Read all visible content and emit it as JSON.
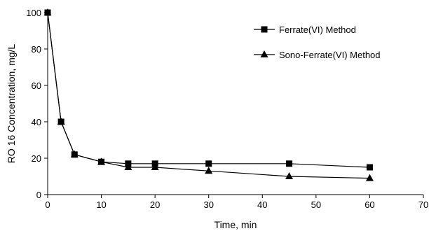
{
  "chart_data": {
    "type": "line",
    "xlabel": "Time, min",
    "ylabel": "RO 16 Concentration, mg/L",
    "xlim": [
      0,
      70
    ],
    "ylim": [
      0,
      100
    ],
    "xticks": [
      "0",
      "10",
      "20",
      "30",
      "40",
      "50",
      "60",
      "70"
    ],
    "yticks": [
      "0",
      "20",
      "40",
      "60",
      "80",
      "100"
    ],
    "grid": false,
    "legend_position": "top-right",
    "series": [
      {
        "name": "Ferrate(VI) Method",
        "marker": "square",
        "color": "#000000",
        "x": [
          0,
          2.5,
          5,
          10,
          15,
          20,
          30,
          45,
          60
        ],
        "y": [
          100,
          40,
          22,
          18,
          17,
          17,
          17,
          17,
          15
        ]
      },
      {
        "name": "Sono-Ferrate(VI) Method",
        "marker": "triangle",
        "color": "#000000",
        "x": [
          0,
          2.5,
          5,
          10,
          15,
          20,
          30,
          45,
          60
        ],
        "y": [
          100,
          40,
          22,
          18,
          15,
          15,
          13,
          10,
          9
        ]
      }
    ]
  }
}
